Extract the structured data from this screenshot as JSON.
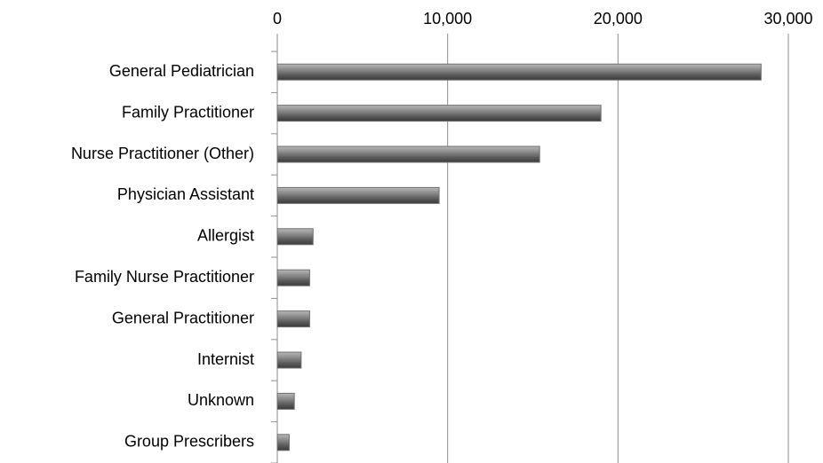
{
  "chart_data": {
    "type": "bar",
    "orientation": "horizontal",
    "categories": [
      "General Pediatrician",
      "Family Practitioner",
      "Nurse Practitioner (Other)",
      "Physician Assistant",
      "Allergist",
      "Family Nurse Practitioner",
      "General Practitioner",
      "Internist",
      "Unknown",
      "Group Prescribers"
    ],
    "values": [
      28400,
      19000,
      15400,
      9500,
      2100,
      1900,
      1900,
      1400,
      1000,
      700
    ],
    "color": "#707070",
    "xlim": [
      0,
      30000
    ],
    "xticks": [
      0,
      {
        "value": 10000,
        "label": "10,000"
      },
      {
        "value": 20000,
        "label": "20,000"
      },
      {
        "value": 30000,
        "label": "30,000"
      }
    ],
    "grid": true
  }
}
